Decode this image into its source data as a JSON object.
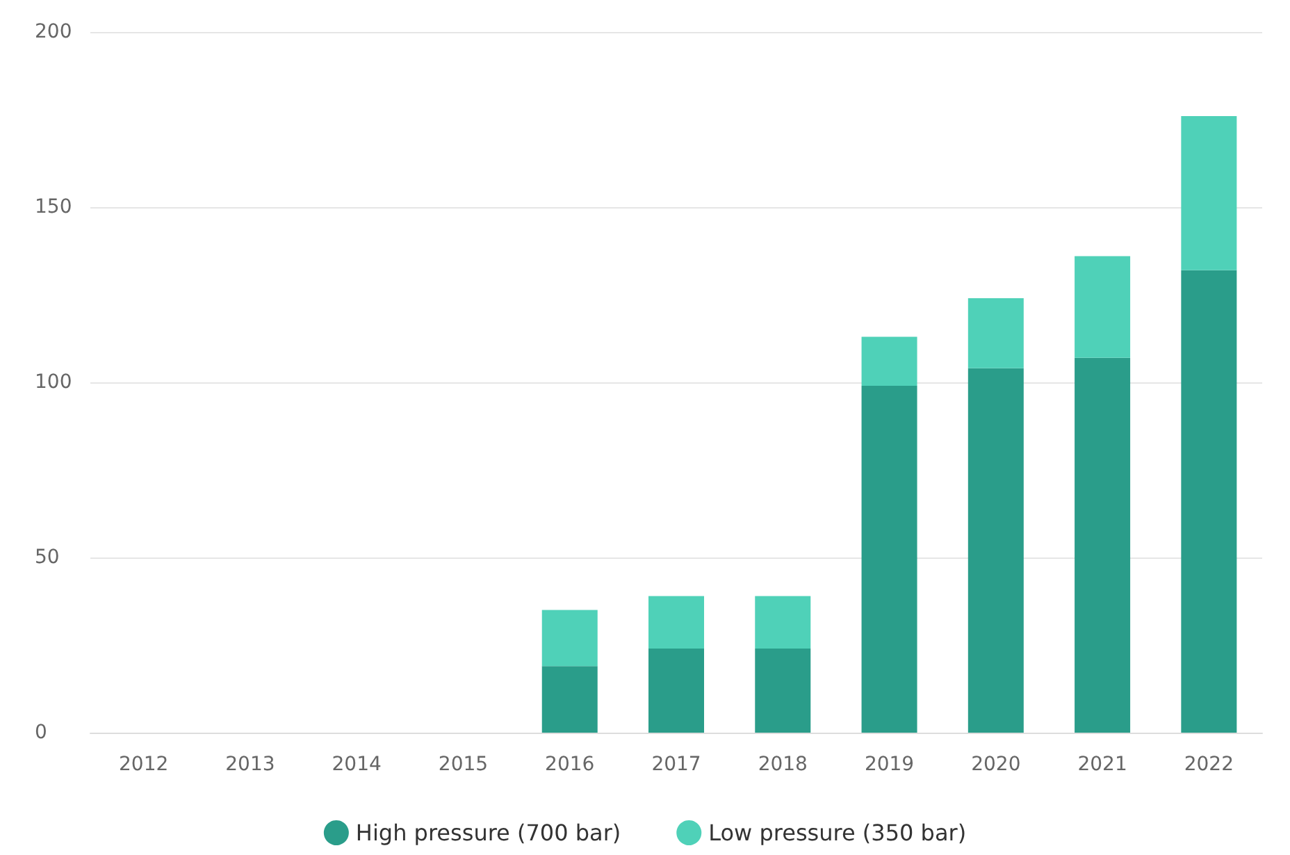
{
  "chart_data": {
    "type": "bar",
    "stacked": true,
    "categories": [
      "2012",
      "2013",
      "2014",
      "2015",
      "2016",
      "2017",
      "2018",
      "2019",
      "2020",
      "2021",
      "2022"
    ],
    "series": [
      {
        "name": "High pressure (700 bar)",
        "color": "#2a9d8a",
        "values": [
          0,
          0,
          0,
          0,
          19,
          24,
          24,
          99,
          104,
          107,
          132
        ]
      },
      {
        "name": "Low pressure (350 bar)",
        "color": "#4fd1b8",
        "values": [
          0,
          0,
          0,
          0,
          16,
          15,
          15,
          14,
          20,
          29,
          44
        ]
      }
    ],
    "ylim": [
      0,
      200
    ],
    "yticks": [
      0,
      50,
      100,
      150,
      200
    ],
    "grid": "y",
    "legend": "bottom"
  }
}
